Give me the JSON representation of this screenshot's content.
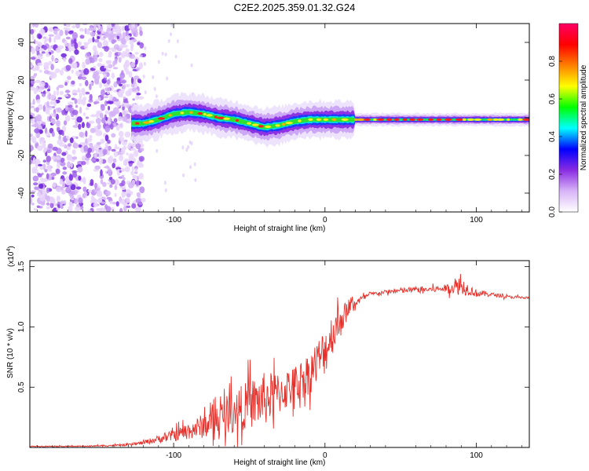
{
  "figure_title": "C2E2.2025.359.01.32.G24",
  "chart_data": [
    {
      "type": "heatmap",
      "title": "C2E2.2025.359.01.32.G24",
      "xlabel": "Height of straight line (km)",
      "ylabel": "Frequency (Hz)",
      "xlim": [
        -195,
        135
      ],
      "ylim": [
        -50,
        50
      ],
      "xticks": [
        -100,
        0,
        100
      ],
      "xtick_labels": [
        "-100",
        "0",
        "100"
      ],
      "yticks": [
        -40,
        -20,
        0,
        20,
        40
      ],
      "ytick_labels": [
        "-40",
        "-20",
        "0",
        "20",
        "40"
      ],
      "noise_region_x": [
        -195,
        -120
      ],
      "signal_start_x": -128,
      "ridge": {
        "x": [
          -128,
          -120,
          -110,
          -100,
          -90,
          -80,
          -70,
          -60,
          -50,
          -40,
          -30,
          -20,
          -10,
          0,
          10,
          20,
          40,
          60,
          80,
          100,
          120,
          135
        ],
        "freq": [
          -3,
          -3,
          -1,
          2,
          3,
          2,
          0,
          -1,
          -3,
          -5,
          -4,
          -2,
          -1,
          -1,
          -1,
          -1,
          -1,
          -1,
          -1,
          -1,
          -1,
          -1
        ]
      },
      "colorbar": {
        "label": "Normalized spectral amplitude",
        "range": [
          0.0,
          1.0
        ],
        "ticks": [
          0.0,
          0.2,
          0.4,
          0.6,
          0.8
        ],
        "tick_labels": [
          "0.0",
          "0.2",
          "0.4",
          "0.6",
          "0.8"
        ],
        "colormap": [
          "#ffffff",
          "#d8b4f8",
          "#8a2be2",
          "#0000ff",
          "#00ffff",
          "#00ff00",
          "#ffff00",
          "#ff8000",
          "#ff0000",
          "#ff0066"
        ]
      }
    },
    {
      "type": "line",
      "xlabel": "Height of straight line (km)",
      "ylabel": "SNR (10 * v/v)",
      "scale_label": "(x10",
      "scale_exponent": "4",
      "scale_suffix": ")",
      "xlim": [
        -195,
        135
      ],
      "ylim": [
        0,
        1.55
      ],
      "xticks": [
        -100,
        0,
        100
      ],
      "xtick_labels": [
        "-100",
        "0",
        "100"
      ],
      "yticks": [
        0.5,
        1.0,
        1.5
      ],
      "ytick_labels": [
        "0.5",
        "1.0",
        "1.5"
      ],
      "series": [
        {
          "name": "SNR",
          "color": "#e8302a",
          "x": [
            -195,
            -160,
            -130,
            -120,
            -110,
            -100,
            -90,
            -80,
            -70,
            -60,
            -50,
            -40,
            -30,
            -20,
            -10,
            0,
            5,
            10,
            15,
            20,
            25,
            30,
            40,
            50,
            60,
            70,
            80,
            90,
            95,
            100,
            110,
            120,
            135
          ],
          "values": [
            0.01,
            0.01,
            0.02,
            0.04,
            0.07,
            0.1,
            0.14,
            0.18,
            0.24,
            0.3,
            0.36,
            0.4,
            0.45,
            0.52,
            0.62,
            0.8,
            0.95,
            1.05,
            1.15,
            1.2,
            1.24,
            1.27,
            1.29,
            1.3,
            1.31,
            1.31,
            1.32,
            1.34,
            1.31,
            1.28,
            1.27,
            1.25,
            1.24
          ],
          "spread": [
            0.005,
            0.005,
            0.01,
            0.02,
            0.04,
            0.06,
            0.09,
            0.13,
            0.17,
            0.22,
            0.25,
            0.28,
            0.22,
            0.2,
            0.22,
            0.25,
            0.22,
            0.18,
            0.08,
            0.05,
            0.03,
            0.02,
            0.02,
            0.03,
            0.03,
            0.03,
            0.04,
            0.1,
            0.06,
            0.04,
            0.02,
            0.015,
            0.015
          ]
        }
      ]
    }
  ]
}
